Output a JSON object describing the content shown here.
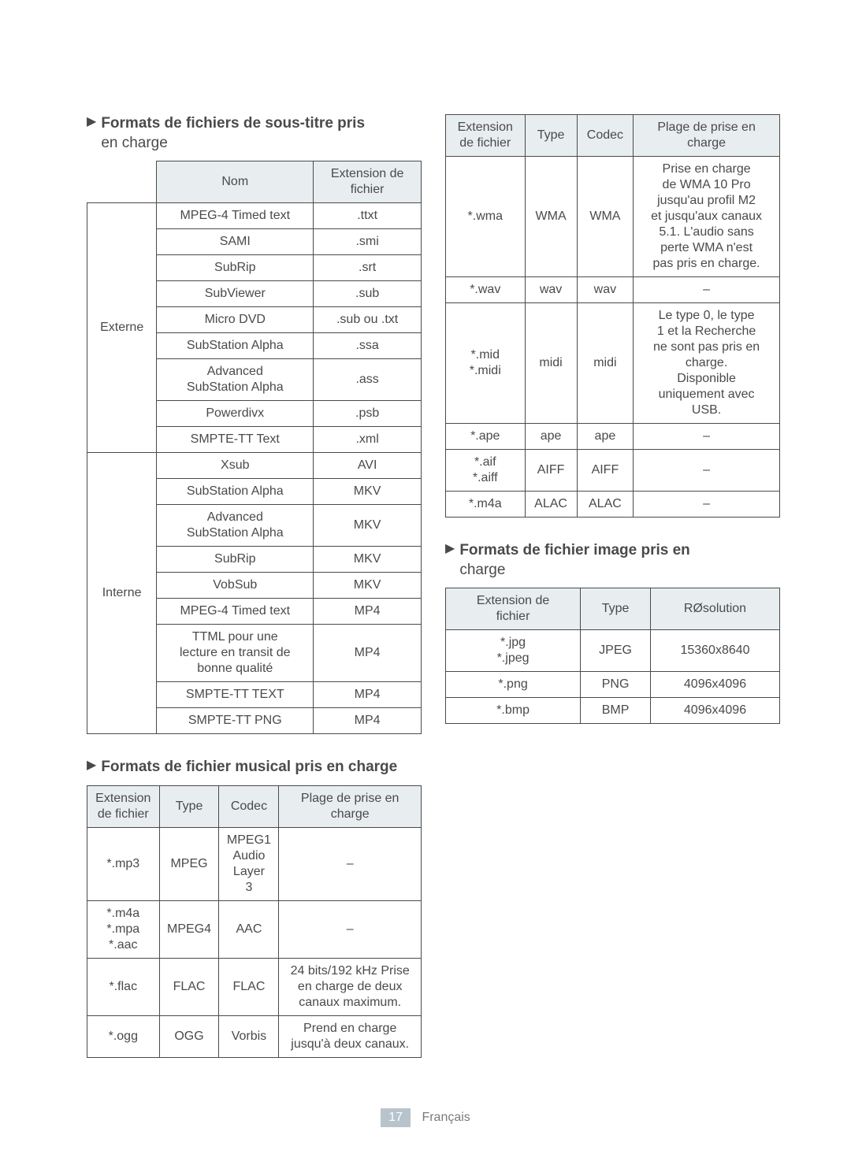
{
  "headings": {
    "subtitle_bold": "Formats de fichiers de sous-titre pris",
    "subtitle_rest": "en charge",
    "audio": "Formats de fichier musical pris en charge",
    "image_bold": "Formats de fichier image pris en",
    "image_rest": "charge"
  },
  "subtitle_table": {
    "h_nom": "Nom",
    "h_ext": "Extension de",
    "h_ext2": "fichier",
    "groups": [
      {
        "label": "Externe",
        "rows": [
          {
            "nom": "MPEG-4 Timed text",
            "ext": ".ttxt"
          },
          {
            "nom": "SAMI",
            "ext": ".smi"
          },
          {
            "nom": "SubRip",
            "ext": ".srt"
          },
          {
            "nom": "SubViewer",
            "ext": ".sub"
          },
          {
            "nom": "Micro DVD",
            "ext": ".sub ou .txt"
          },
          {
            "nom": "SubStation Alpha",
            "ext": ".ssa"
          },
          {
            "nom": "Advanced\nSubStation Alpha",
            "ext": ".ass"
          },
          {
            "nom": "Powerdivx",
            "ext": ".psb"
          },
          {
            "nom": "SMPTE-TT Text",
            "ext": ".xml"
          }
        ]
      },
      {
        "label": "Interne",
        "rows": [
          {
            "nom": "Xsub",
            "ext": "AVI"
          },
          {
            "nom": "SubStation Alpha",
            "ext": "MKV"
          },
          {
            "nom": "Advanced\nSubStation Alpha",
            "ext": "MKV"
          },
          {
            "nom": "SubRip",
            "ext": "MKV"
          },
          {
            "nom": "VobSub",
            "ext": "MKV"
          },
          {
            "nom": "MPEG-4 Timed text",
            "ext": "MP4"
          },
          {
            "nom": "TTML pour une\nlecture en transit de\nbonne qualité",
            "ext": "MP4"
          },
          {
            "nom": "SMPTE-TT TEXT",
            "ext": "MP4"
          },
          {
            "nom": "SMPTE-TT PNG",
            "ext": "MP4"
          }
        ]
      }
    ]
  },
  "audio_table": {
    "h_ext1": "Extension",
    "h_ext2": "de fichier",
    "h_type": "Type",
    "h_codec": "Codec",
    "h_range1": "Plage de prise en",
    "h_range2": "charge",
    "rows": [
      {
        "ext": "*.mp3",
        "type": "MPEG",
        "codec": "MPEG1\nAudio\nLayer\n3",
        "range": "–"
      },
      {
        "ext": "*.m4a\n*.mpa\n*.aac",
        "type": "MPEG4",
        "codec": "AAC",
        "range": "–"
      },
      {
        "ext": "*.flac",
        "type": "FLAC",
        "codec": "FLAC",
        "range": "24 bits/192 kHz Prise\nen charge de deux\ncanaux maximum."
      },
      {
        "ext": "*.ogg",
        "type": "OGG",
        "codec": "Vorbis",
        "range": "Prend en charge\njusqu'à deux canaux."
      }
    ]
  },
  "audio_table2": {
    "rows": [
      {
        "ext": "*.wma",
        "type": "WMA",
        "codec": "WMA",
        "range": "Prise en charge\nde WMA 10 Pro\njusqu'au profil M2\net jusqu'aux canaux\n5.1. L'audio sans\nperte WMA n'est\npas pris en charge."
      },
      {
        "ext": "*.wav",
        "type": "wav",
        "codec": "wav",
        "range": "–"
      },
      {
        "ext": "*.mid\n*.midi",
        "type": "midi",
        "codec": "midi",
        "range": "Le type 0, le type\n1 et la Recherche\nne sont pas pris en\ncharge.\nDisponible\nuniquement avec\nUSB."
      },
      {
        "ext": "*.ape",
        "type": "ape",
        "codec": "ape",
        "range": "–"
      },
      {
        "ext": "*.aif\n*.aiff",
        "type": "AIFF",
        "codec": "AIFF",
        "range": "–"
      },
      {
        "ext": "*.m4a",
        "type": "ALAC",
        "codec": "ALAC",
        "range": "–"
      }
    ]
  },
  "image_table": {
    "h_ext1": "Extension de",
    "h_ext2": "fichier",
    "h_type": "Type",
    "h_res": "RØsolution",
    "rows": [
      {
        "ext": "*.jpg\n*.jpeg",
        "type": "JPEG",
        "res": "15360x8640"
      },
      {
        "ext": "*.png",
        "type": "PNG",
        "res": "4096x4096"
      },
      {
        "ext": "*.bmp",
        "type": "BMP",
        "res": "4096x4096"
      }
    ]
  },
  "footer": {
    "page": "17",
    "lang": "Français"
  }
}
